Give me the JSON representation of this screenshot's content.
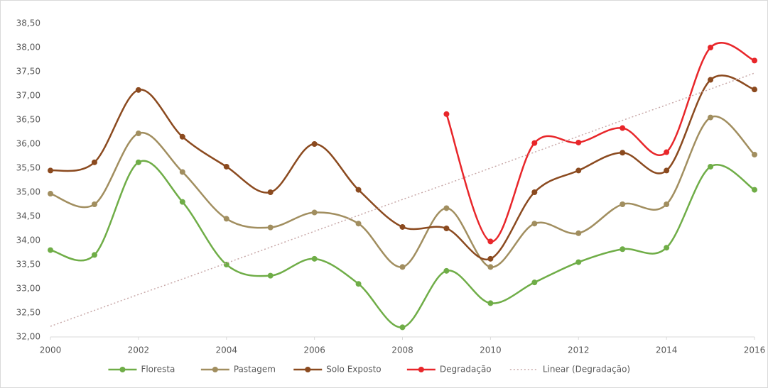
{
  "chart_data": {
    "type": "line",
    "x": [
      2000,
      2001,
      2002,
      2003,
      2004,
      2005,
      2006,
      2007,
      2008,
      2009,
      2010,
      2011,
      2012,
      2013,
      2014,
      2015,
      2016
    ],
    "series": [
      {
        "name": "Floresta",
        "color": "#6fad47",
        "marker": true,
        "dash": "solid",
        "values": [
          33.8,
          33.7,
          35.62,
          34.8,
          33.5,
          33.27,
          33.62,
          33.1,
          32.2,
          33.37,
          32.7,
          33.13,
          33.55,
          33.82,
          33.85,
          35.53,
          35.05
        ]
      },
      {
        "name": "Pastagem",
        "color": "#a18e5f",
        "marker": true,
        "dash": "solid",
        "values": [
          34.97,
          34.75,
          36.22,
          35.42,
          34.45,
          34.27,
          34.58,
          34.35,
          33.45,
          34.67,
          33.45,
          34.35,
          34.15,
          34.75,
          34.75,
          36.55,
          35.78
        ]
      },
      {
        "name": "Solo Exposto",
        "color": "#8b4a1f",
        "marker": true,
        "dash": "solid",
        "values": [
          35.45,
          35.62,
          37.12,
          36.15,
          35.53,
          35.0,
          36.0,
          35.05,
          34.28,
          34.25,
          33.62,
          35.0,
          35.45,
          35.82,
          35.45,
          37.33,
          37.13
        ]
      },
      {
        "name": "Degradação",
        "color": "#e8262a",
        "marker": true,
        "dash": "solid",
        "values": [
          null,
          null,
          null,
          null,
          null,
          null,
          null,
          null,
          null,
          36.62,
          33.98,
          36.02,
          36.03,
          36.33,
          35.83,
          38.0,
          37.73
        ]
      },
      {
        "name": "Linear (Degradação)",
        "color": "#c8a8a8",
        "marker": false,
        "dash": "dotted",
        "values": [
          32.22,
          32.55,
          32.88,
          33.2,
          33.53,
          33.86,
          34.19,
          34.52,
          34.85,
          35.17,
          35.5,
          35.83,
          36.16,
          36.49,
          36.81,
          37.14,
          37.47
        ]
      }
    ],
    "xlim": [
      2000,
      2016
    ],
    "xticks": [
      2000,
      2002,
      2004,
      2006,
      2008,
      2010,
      2012,
      2014,
      2016
    ],
    "ylim": [
      32,
      38.5
    ],
    "yticks": [
      {
        "value": 32,
        "label": "32,00"
      },
      {
        "value": 32.5,
        "label": "32,50"
      },
      {
        "value": 33,
        "label": "33,00"
      },
      {
        "value": 33.5,
        "label": "33,50"
      },
      {
        "value": 34,
        "label": "34,00"
      },
      {
        "value": 34.5,
        "label": "34,50"
      },
      {
        "value": 35,
        "label": "35,00"
      },
      {
        "value": 35.5,
        "label": "35,50"
      },
      {
        "value": 36,
        "label": "36,00"
      },
      {
        "value": 36.5,
        "label": "36,50"
      },
      {
        "value": 37,
        "label": "37,00"
      },
      {
        "value": 37.5,
        "label": "37,50"
      },
      {
        "value": 38,
        "label": "38,00"
      },
      {
        "value": 38.5,
        "label": "38,50"
      }
    ],
    "grid": false,
    "legend": "bottom",
    "smooth": true
  }
}
